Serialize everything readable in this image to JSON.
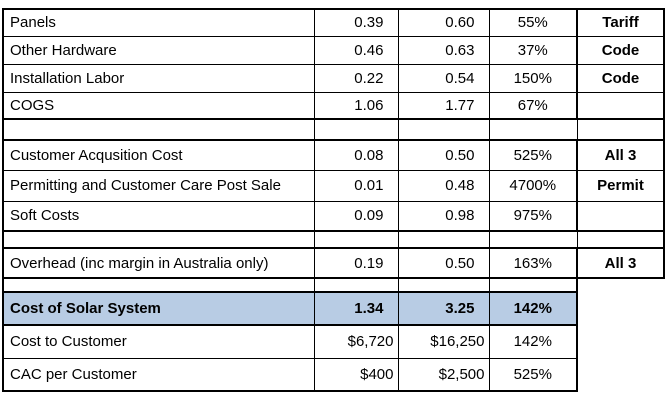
{
  "colors": {
    "highlight_row_bg": "#b8cce4",
    "grid_border": "#000000",
    "text": "#000000"
  },
  "chart_data": {
    "type": "table",
    "header_visible": false,
    "rows": [
      {
        "type": "item",
        "has_note_col": true,
        "cells": [
          "Panels",
          "0.39",
          "0.60",
          "55%",
          "Tariff"
        ]
      },
      {
        "type": "item",
        "has_note_col": true,
        "cells": [
          "Other Hardware",
          "0.46",
          "0.63",
          "37%",
          "Code"
        ]
      },
      {
        "type": "item",
        "has_note_col": true,
        "cells": [
          "Installation Labor",
          "0.22",
          "0.54",
          "150%",
          "Code"
        ]
      },
      {
        "type": "item",
        "has_note_col": true,
        "cells": [
          "COGS",
          "1.06",
          "1.77",
          "67%",
          ""
        ]
      },
      {
        "type": "spacer",
        "has_note_col": true,
        "cells": [
          "",
          "",
          "",
          "",
          ""
        ]
      },
      {
        "type": "item",
        "has_note_col": true,
        "cells": [
          "Customer Acqusition Cost",
          "0.08",
          "0.50",
          "525%",
          "All 3"
        ]
      },
      {
        "type": "item",
        "has_note_col": true,
        "cells": [
          "Permitting and Customer Care Post Sale",
          "0.01",
          "0.48",
          "4700%",
          "Permit"
        ]
      },
      {
        "type": "item",
        "has_note_col": true,
        "cells": [
          "Soft Costs",
          "0.09",
          "0.98",
          "975%",
          ""
        ]
      },
      {
        "type": "spacer",
        "has_note_col": true,
        "cells": [
          "",
          "",
          "",
          "",
          ""
        ]
      },
      {
        "type": "item",
        "has_note_col": true,
        "cells": [
          "Overhead (inc margin in Australia only)",
          "0.19",
          "0.50",
          "163%",
          "All 3"
        ]
      },
      {
        "type": "spacer",
        "has_note_col": false,
        "cells": [
          "",
          "",
          "",
          "",
          ""
        ]
      },
      {
        "type": "total",
        "has_note_col": false,
        "cells": [
          "Cost of Solar System",
          "1.34",
          "3.25",
          "142%",
          ""
        ]
      },
      {
        "type": "money",
        "has_note_col": false,
        "cells": [
          "Cost to Customer",
          "$6,720",
          "$16,250",
          "142%",
          ""
        ]
      },
      {
        "type": "money",
        "has_note_col": false,
        "cells": [
          "CAC per Customer",
          "$400",
          "$2,500",
          "525%",
          ""
        ]
      }
    ]
  }
}
